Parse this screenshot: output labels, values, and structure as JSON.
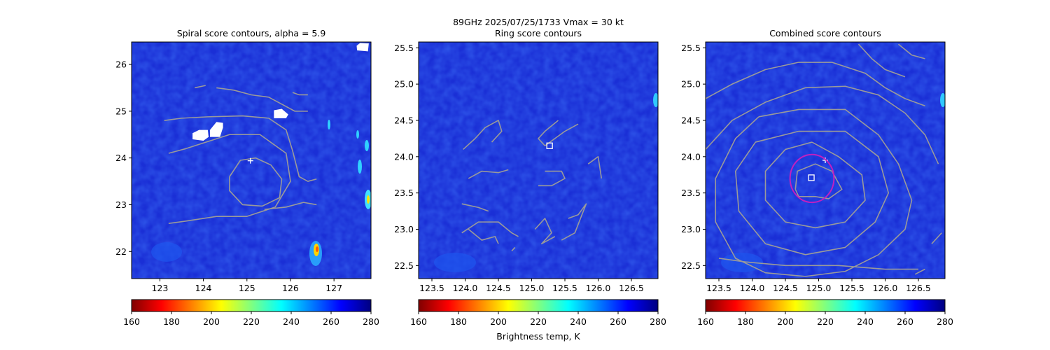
{
  "figure": {
    "suptitle_line1": "89GHz  2025/07/25/1733    Vmax = 30 kt",
    "colorbar_label": "Brightness temp, K"
  },
  "chart_data": [
    {
      "type": "heatmap",
      "title": "Spiral score contours, alpha =  5.9",
      "xlim": [
        122.35,
        127.85
      ],
      "ylim": [
        21.42,
        26.48
      ],
      "xticks": [
        123,
        124,
        125,
        126,
        127
      ],
      "yticks": [
        22,
        23,
        24,
        25,
        26
      ],
      "colorbar": {
        "vmin": 160,
        "vmax": 280,
        "ticks": [
          160,
          180,
          200,
          220,
          240,
          260,
          280
        ],
        "colormap": "jet_r"
      },
      "markers": [
        {
          "shape": "plus",
          "x": 125.08,
          "y": 23.94,
          "color": "#ffffff"
        }
      ],
      "contours": [
        [
          [
            124.6,
            23.6
          ],
          [
            124.85,
            23.95
          ],
          [
            125.2,
            24.0
          ],
          [
            125.55,
            23.85
          ],
          [
            125.8,
            23.55
          ],
          [
            125.75,
            23.15
          ],
          [
            125.35,
            22.97
          ],
          [
            124.9,
            23.0
          ],
          [
            124.6,
            23.3
          ],
          [
            124.6,
            23.6
          ]
        ],
        [
          [
            123.2,
            24.1
          ],
          [
            123.6,
            24.2
          ],
          [
            124.1,
            24.35
          ],
          [
            124.6,
            24.5
          ],
          [
            125.3,
            24.5
          ],
          [
            125.9,
            24.1
          ],
          [
            126.0,
            23.5
          ],
          [
            125.65,
            22.95
          ],
          [
            125.0,
            22.75
          ],
          [
            124.3,
            22.75
          ],
          [
            123.6,
            22.65
          ],
          [
            123.2,
            22.6
          ]
        ],
        [
          [
            123.1,
            24.8
          ],
          [
            123.5,
            24.85
          ],
          [
            124.1,
            24.88
          ],
          [
            124.9,
            24.9
          ],
          [
            125.5,
            24.85
          ],
          [
            125.9,
            24.6
          ],
          [
            126.05,
            24.15
          ],
          [
            126.2,
            23.6
          ],
          [
            126.4,
            23.5
          ],
          [
            126.6,
            23.55
          ]
        ],
        [
          [
            124.3,
            25.5
          ],
          [
            124.7,
            25.45
          ],
          [
            125.1,
            25.35
          ],
          [
            125.5,
            25.3
          ],
          [
            125.8,
            25.15
          ],
          [
            126.1,
            25.0
          ],
          [
            126.4,
            25.0
          ]
        ],
        [
          [
            123.8,
            25.5
          ],
          [
            124.05,
            25.55
          ]
        ],
        [
          [
            126.05,
            25.4
          ],
          [
            126.2,
            25.35
          ],
          [
            126.4,
            25.35
          ]
        ],
        [
          [
            125.4,
            22.9
          ],
          [
            125.9,
            22.95
          ],
          [
            126.3,
            23.05
          ],
          [
            126.6,
            23.0
          ]
        ]
      ],
      "masked_regions": [
        [
          [
            123.75,
            24.4
          ],
          [
            124.0,
            24.37
          ],
          [
            124.12,
            24.45
          ],
          [
            124.1,
            24.6
          ],
          [
            123.9,
            24.6
          ],
          [
            123.75,
            24.53
          ]
        ],
        [
          [
            124.15,
            24.45
          ],
          [
            124.38,
            24.45
          ],
          [
            124.45,
            24.65
          ],
          [
            124.45,
            24.75
          ],
          [
            124.3,
            24.77
          ],
          [
            124.15,
            24.6
          ]
        ],
        [
          [
            125.62,
            24.85
          ],
          [
            125.9,
            24.85
          ],
          [
            125.95,
            24.93
          ],
          [
            125.8,
            25.05
          ],
          [
            125.62,
            25.02
          ]
        ],
        [
          [
            127.53,
            26.3
          ],
          [
            127.78,
            26.28
          ],
          [
            127.8,
            26.45
          ],
          [
            127.6,
            26.46
          ],
          [
            127.52,
            26.4
          ]
        ]
      ]
    },
    {
      "type": "heatmap",
      "title": "Ring score contours",
      "xlim": [
        123.3,
        126.9
      ],
      "ylim": [
        22.32,
        25.58
      ],
      "xticks": [
        123.5,
        124.0,
        124.5,
        125.0,
        125.5,
        126.0,
        126.5
      ],
      "yticks": [
        22.5,
        23.0,
        23.5,
        24.0,
        24.5,
        25.0,
        25.5
      ],
      "colorbar": {
        "vmin": 160,
        "vmax": 280,
        "ticks": [
          160,
          180,
          200,
          220,
          240,
          260,
          280
        ],
        "colormap": "jet_r"
      },
      "markers": [
        {
          "shape": "square",
          "x": 125.27,
          "y": 24.15,
          "color": "#ffffff"
        }
      ],
      "contours": [
        [
          [
            123.97,
            24.1
          ],
          [
            124.15,
            24.25
          ],
          [
            124.3,
            24.4
          ],
          [
            124.5,
            24.5
          ],
          [
            124.55,
            24.35
          ],
          [
            124.4,
            24.2
          ]
        ],
        [
          [
            124.05,
            23.7
          ],
          [
            124.25,
            23.8
          ],
          [
            124.5,
            23.78
          ],
          [
            124.65,
            23.82
          ]
        ],
        [
          [
            123.95,
            23.35
          ],
          [
            124.2,
            23.3
          ],
          [
            124.35,
            23.25
          ]
        ],
        [
          [
            123.95,
            22.95
          ],
          [
            124.2,
            23.1
          ],
          [
            124.5,
            23.1
          ],
          [
            124.7,
            22.95
          ],
          [
            124.8,
            22.9
          ]
        ],
        [
          [
            124.05,
            23.0
          ],
          [
            124.25,
            22.85
          ],
          [
            124.45,
            22.9
          ],
          [
            124.5,
            22.8
          ]
        ],
        [
          [
            125.4,
            24.5
          ],
          [
            125.2,
            24.35
          ],
          [
            125.1,
            24.25
          ],
          [
            125.2,
            24.15
          ],
          [
            125.5,
            24.35
          ],
          [
            125.7,
            24.45
          ]
        ],
        [
          [
            125.2,
            23.8
          ],
          [
            125.45,
            23.8
          ],
          [
            125.5,
            23.7
          ],
          [
            125.3,
            23.6
          ],
          [
            125.1,
            23.6
          ]
        ],
        [
          [
            125.55,
            23.15
          ],
          [
            125.7,
            23.2
          ],
          [
            125.82,
            23.35
          ],
          [
            125.65,
            22.95
          ],
          [
            125.45,
            22.85
          ]
        ],
        [
          [
            125.05,
            23.0
          ],
          [
            125.2,
            23.15
          ],
          [
            125.3,
            22.95
          ],
          [
            125.15,
            22.8
          ],
          [
            125.35,
            22.9
          ]
        ],
        [
          [
            125.85,
            23.9
          ],
          [
            126.0,
            24.0
          ],
          [
            126.05,
            23.7
          ]
        ],
        [
          [
            124.7,
            22.7
          ],
          [
            124.75,
            22.75
          ]
        ]
      ]
    },
    {
      "type": "heatmap",
      "title": "Combined score contours",
      "xlim": [
        123.3,
        126.9
      ],
      "ylim": [
        22.32,
        25.58
      ],
      "xticks": [
        123.5,
        124.0,
        124.5,
        125.0,
        125.5,
        126.0,
        126.5
      ],
      "yticks": [
        22.5,
        23.0,
        23.5,
        24.0,
        24.5,
        25.0,
        25.5
      ],
      "colorbar": {
        "vmin": 160,
        "vmax": 280,
        "ticks": [
          160,
          180,
          200,
          220,
          240,
          260,
          280
        ],
        "colormap": "jet_r"
      },
      "markers": [
        {
          "shape": "plus",
          "x": 125.1,
          "y": 23.95,
          "color": "#ffffff"
        },
        {
          "shape": "square",
          "x": 124.89,
          "y": 23.71,
          "color": "#ffffff"
        },
        {
          "shape": "circle",
          "x": 124.9,
          "y": 23.7,
          "r": 0.33,
          "color": "#c020c0"
        }
      ],
      "contours": [
        [
          [
            124.65,
            23.55
          ],
          [
            124.68,
            23.8
          ],
          [
            124.95,
            23.9
          ],
          [
            125.2,
            23.8
          ],
          [
            125.35,
            23.55
          ],
          [
            125.15,
            23.42
          ],
          [
            124.95,
            23.45
          ],
          [
            124.7,
            23.45
          ],
          [
            124.65,
            23.55
          ]
        ],
        [
          [
            124.9,
            24.2
          ],
          [
            125.3,
            24.0
          ],
          [
            125.65,
            23.75
          ],
          [
            125.7,
            23.4
          ],
          [
            125.4,
            23.1
          ],
          [
            124.95,
            23.02
          ],
          [
            124.5,
            23.1
          ],
          [
            124.2,
            23.4
          ],
          [
            124.2,
            23.8
          ],
          [
            124.5,
            24.1
          ],
          [
            124.9,
            24.2
          ]
        ],
        [
          [
            124.7,
            24.35
          ],
          [
            125.4,
            24.35
          ],
          [
            125.9,
            24.0
          ],
          [
            126.05,
            23.5
          ],
          [
            125.85,
            23.1
          ],
          [
            125.4,
            22.75
          ],
          [
            124.8,
            22.65
          ],
          [
            124.2,
            22.8
          ],
          [
            123.8,
            23.25
          ],
          [
            123.75,
            23.8
          ],
          [
            124.05,
            24.2
          ],
          [
            124.7,
            24.35
          ]
        ],
        [
          [
            124.1,
            24.55
          ],
          [
            124.7,
            24.65
          ],
          [
            125.4,
            24.65
          ],
          [
            125.9,
            24.3
          ],
          [
            126.2,
            23.9
          ],
          [
            126.4,
            23.4
          ],
          [
            126.3,
            23.0
          ],
          [
            125.9,
            22.65
          ],
          [
            125.4,
            22.42
          ],
          [
            124.8,
            22.35
          ],
          [
            124.2,
            22.4
          ],
          [
            123.75,
            22.6
          ],
          [
            123.45,
            23.1
          ],
          [
            123.45,
            23.7
          ],
          [
            123.75,
            24.25
          ],
          [
            124.1,
            24.55
          ]
        ],
        [
          [
            123.3,
            24.1
          ],
          [
            123.7,
            24.5
          ],
          [
            124.2,
            24.75
          ],
          [
            124.8,
            24.95
          ],
          [
            125.4,
            24.97
          ],
          [
            125.9,
            24.85
          ],
          [
            126.3,
            24.6
          ],
          [
            126.6,
            24.3
          ],
          [
            126.8,
            23.9
          ]
        ],
        [
          [
            123.3,
            24.8
          ],
          [
            123.7,
            25.0
          ],
          [
            124.2,
            25.2
          ],
          [
            124.7,
            25.3
          ],
          [
            125.2,
            25.3
          ],
          [
            125.7,
            25.15
          ],
          [
            126.0,
            24.95
          ],
          [
            126.3,
            24.8
          ],
          [
            126.6,
            24.7
          ]
        ],
        [
          [
            125.6,
            25.55
          ],
          [
            125.8,
            25.35
          ],
          [
            126.0,
            25.2
          ],
          [
            126.3,
            25.1
          ]
        ],
        [
          [
            126.2,
            25.55
          ],
          [
            126.4,
            25.4
          ],
          [
            126.6,
            25.35
          ]
        ],
        [
          [
            123.5,
            22.6
          ],
          [
            123.9,
            22.55
          ],
          [
            124.5,
            22.5
          ],
          [
            125.3,
            22.5
          ],
          [
            126.0,
            22.45
          ],
          [
            126.5,
            22.45
          ]
        ],
        [
          [
            126.45,
            22.38
          ],
          [
            126.6,
            22.45
          ]
        ],
        [
          [
            126.7,
            22.8
          ],
          [
            126.85,
            22.95
          ]
        ]
      ]
    }
  ]
}
